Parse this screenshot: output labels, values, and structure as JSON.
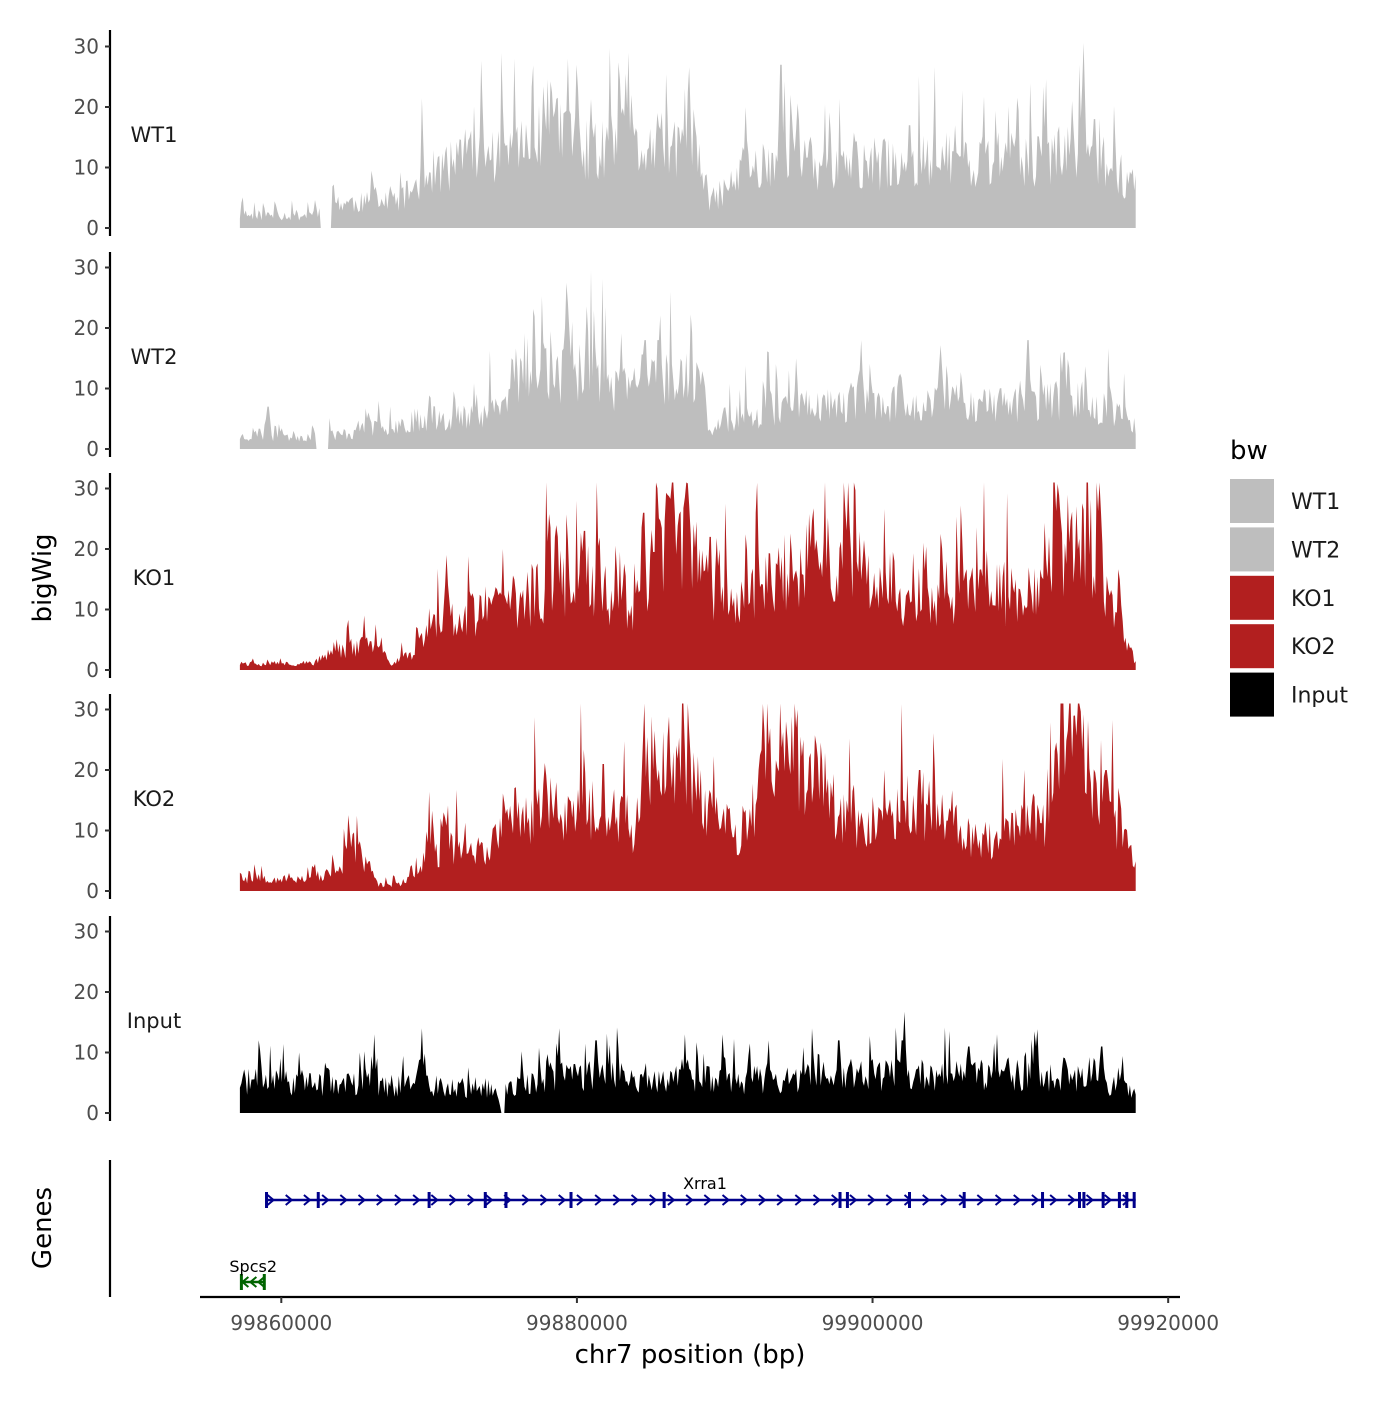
{
  "chart_data": {
    "type": "area",
    "title": "",
    "xlabel": "chr7 position (bp)",
    "ylabel": "bigWig",
    "genes_panel_label": "Genes",
    "xlim": [
      99854500,
      99920800
    ],
    "ylim": [
      0,
      31
    ],
    "x_ticks": [
      99860000,
      99880000,
      99900000,
      99920000
    ],
    "x_tick_labels": [
      "99860000",
      "99880000",
      "99900000",
      "99920000"
    ],
    "y_ticks": [
      0,
      10,
      20,
      30
    ],
    "y_tick_labels": [
      "0",
      "10",
      "20",
      "30"
    ],
    "grid": false,
    "legend_position": "right",
    "legend": {
      "title": "bw",
      "entries": [
        {
          "label": "WT1",
          "color": "#BEBEBE"
        },
        {
          "label": "WT2",
          "color": "#BEBEBE"
        },
        {
          "label": "KO1",
          "color": "#B21F1F"
        },
        {
          "label": "KO2",
          "color": "#B21F1F"
        },
        {
          "label": "Input",
          "color": "#000000"
        }
      ]
    },
    "region": {
      "start": 99857200,
      "end": 99917800
    },
    "series": [
      {
        "name": "WT1",
        "color": "#BEBEBE",
        "seed": 11,
        "gaps": [
          [
            99862600,
            99863400
          ]
        ],
        "profile": [
          [
            99857200,
            2
          ],
          [
            99862500,
            2
          ],
          [
            99863400,
            4
          ],
          [
            99868000,
            4
          ],
          [
            99869500,
            8
          ],
          [
            99873000,
            11
          ],
          [
            99876000,
            12
          ],
          [
            99879000,
            15
          ],
          [
            99880500,
            12
          ],
          [
            99884000,
            12
          ],
          [
            99886000,
            13
          ],
          [
            99888500,
            9
          ],
          [
            99889000,
            4
          ],
          [
            99891000,
            8
          ],
          [
            99894000,
            12
          ],
          [
            99897000,
            9
          ],
          [
            99900000,
            10
          ],
          [
            99905000,
            11
          ],
          [
            99910000,
            10
          ],
          [
            99914000,
            12
          ],
          [
            99917800,
            7
          ]
        ],
        "peaks": [
          [
            99875800,
            28
          ],
          [
            99879400,
            28
          ],
          [
            99880000,
            27
          ],
          [
            99883700,
            22
          ],
          [
            99887300,
            23
          ],
          [
            99891400,
            20
          ],
          [
            99893800,
            27
          ],
          [
            99902500,
            17
          ],
          [
            99905600,
            17
          ],
          [
            99913500,
            21
          ],
          [
            99915000,
            18
          ]
        ]
      },
      {
        "name": "WT2",
        "color": "#BEBEBE",
        "seed": 23,
        "gaps": [
          [
            99862300,
            99863200
          ]
        ],
        "profile": [
          [
            99857200,
            2
          ],
          [
            99862200,
            2
          ],
          [
            99863200,
            2
          ],
          [
            99866000,
            3
          ],
          [
            99870000,
            5
          ],
          [
            99873000,
            5
          ],
          [
            99875000,
            7
          ],
          [
            99877000,
            10
          ],
          [
            99880000,
            13
          ],
          [
            99883000,
            9
          ],
          [
            99885000,
            12
          ],
          [
            99888500,
            10
          ],
          [
            99889000,
            3
          ],
          [
            99891000,
            5
          ],
          [
            99895000,
            7
          ],
          [
            99900000,
            7
          ],
          [
            99905000,
            7
          ],
          [
            99910000,
            7
          ],
          [
            99914000,
            8
          ],
          [
            99917800,
            4
          ]
        ],
        "peaks": [
          [
            99859100,
            7
          ],
          [
            99875600,
            15
          ],
          [
            99879200,
            20
          ],
          [
            99879700,
            21
          ],
          [
            99884600,
            18
          ],
          [
            99885500,
            18
          ],
          [
            99893000,
            16
          ],
          [
            99899200,
            18
          ],
          [
            99904500,
            14
          ],
          [
            99910500,
            18
          ],
          [
            99913000,
            16
          ]
        ]
      },
      {
        "name": "KO1",
        "color": "#B21F1F",
        "seed": 37,
        "gaps": [],
        "profile": [
          [
            99857200,
            1
          ],
          [
            99862000,
            1
          ],
          [
            99864000,
            3
          ],
          [
            99866000,
            4
          ],
          [
            99867500,
            1
          ],
          [
            99869000,
            3
          ],
          [
            99871000,
            8
          ],
          [
            99875000,
            10
          ],
          [
            99877000,
            12
          ],
          [
            99881000,
            15
          ],
          [
            99883000,
            9
          ],
          [
            99884500,
            10
          ],
          [
            99885500,
            20
          ],
          [
            99887000,
            22
          ],
          [
            99889000,
            12
          ],
          [
            99891000,
            10
          ],
          [
            99893000,
            14
          ],
          [
            99896000,
            18
          ],
          [
            99899000,
            16
          ],
          [
            99900000,
            13
          ],
          [
            99902000,
            9
          ],
          [
            99906000,
            12
          ],
          [
            99910000,
            12
          ],
          [
            99912000,
            18
          ],
          [
            99914000,
            21
          ],
          [
            99916000,
            12
          ],
          [
            99917800,
            1
          ]
        ],
        "peaks": [
          [
            99865600,
            9
          ],
          [
            99871200,
            19
          ],
          [
            99875000,
            20
          ],
          [
            99878700,
            22
          ],
          [
            99880500,
            23
          ],
          [
            99884500,
            26
          ],
          [
            99886400,
            31
          ],
          [
            99889000,
            22
          ],
          [
            99897000,
            20
          ],
          [
            99905000,
            18
          ],
          [
            99913500,
            25
          ]
        ]
      },
      {
        "name": "KO2",
        "color": "#B21F1F",
        "seed": 53,
        "gaps": [],
        "profile": [
          [
            99857200,
            2
          ],
          [
            99862000,
            2
          ],
          [
            99864000,
            3
          ],
          [
            99865000,
            7
          ],
          [
            99866500,
            1
          ],
          [
            99868000,
            1
          ],
          [
            99870000,
            6
          ],
          [
            99873000,
            6
          ],
          [
            99874500,
            8
          ],
          [
            99876000,
            12
          ],
          [
            99878000,
            9
          ],
          [
            99880000,
            14
          ],
          [
            99884000,
            10
          ],
          [
            99885000,
            22
          ],
          [
            99887000,
            19
          ],
          [
            99889000,
            12
          ],
          [
            99891000,
            9
          ],
          [
            99893000,
            18
          ],
          [
            99895500,
            20
          ],
          [
            99897500,
            14
          ],
          [
            99899000,
            10
          ],
          [
            99901000,
            12
          ],
          [
            99903000,
            14
          ],
          [
            99905000,
            12
          ],
          [
            99907000,
            8
          ],
          [
            99910000,
            10
          ],
          [
            99912000,
            12
          ],
          [
            99913500,
            24
          ],
          [
            99915000,
            17
          ],
          [
            99917800,
            4
          ]
        ],
        "peaks": [
          [
            99865300,
            7
          ],
          [
            99871000,
            13
          ],
          [
            99875800,
            17
          ],
          [
            99878600,
            18
          ],
          [
            99881800,
            21
          ],
          [
            99884500,
            25
          ],
          [
            99886500,
            23
          ],
          [
            99895700,
            22
          ],
          [
            99900800,
            20
          ],
          [
            99903200,
            20
          ],
          [
            99913700,
            29
          ],
          [
            99915800,
            20
          ]
        ]
      },
      {
        "name": "Input",
        "color": "#000000",
        "seed": 71,
        "gaps": [
          [
            99874800,
            99875100
          ]
        ],
        "profile": [
          [
            99857200,
            5
          ],
          [
            99874000,
            4
          ],
          [
            99874800,
            1
          ],
          [
            99875100,
            4
          ],
          [
            99880000,
            6
          ],
          [
            99890000,
            5
          ],
          [
            99900000,
            6
          ],
          [
            99910000,
            6
          ],
          [
            99917800,
            4
          ]
        ],
        "peaks": [
          [
            99861200,
            10
          ],
          [
            99866300,
            13
          ],
          [
            99869500,
            14
          ],
          [
            99878800,
            14
          ],
          [
            99881300,
            12
          ],
          [
            99887300,
            13
          ],
          [
            99893000,
            12
          ],
          [
            99897700,
            12
          ],
          [
            99902000,
            12
          ],
          [
            99906500,
            11
          ],
          [
            99911000,
            11
          ],
          [
            99915500,
            11
          ]
        ]
      }
    ],
    "genes": [
      {
        "name": "Xrra1",
        "strand": "+",
        "start": 99859000,
        "end": 99917800,
        "color": "#00008B",
        "exons": [
          99859000,
          99862500,
          99870000,
          99873800,
          99875200,
          99879600,
          99885900,
          99897800,
          99898300,
          99902500,
          99906200,
          99911500,
          99914000,
          99914300,
          99915600,
          99916700,
          99917200,
          99917700
        ]
      },
      {
        "name": "Spcs2",
        "strand": "-",
        "start": 99857300,
        "end": 99858900,
        "color": "#006400",
        "exons": [
          99857300,
          99858850
        ]
      }
    ]
  }
}
